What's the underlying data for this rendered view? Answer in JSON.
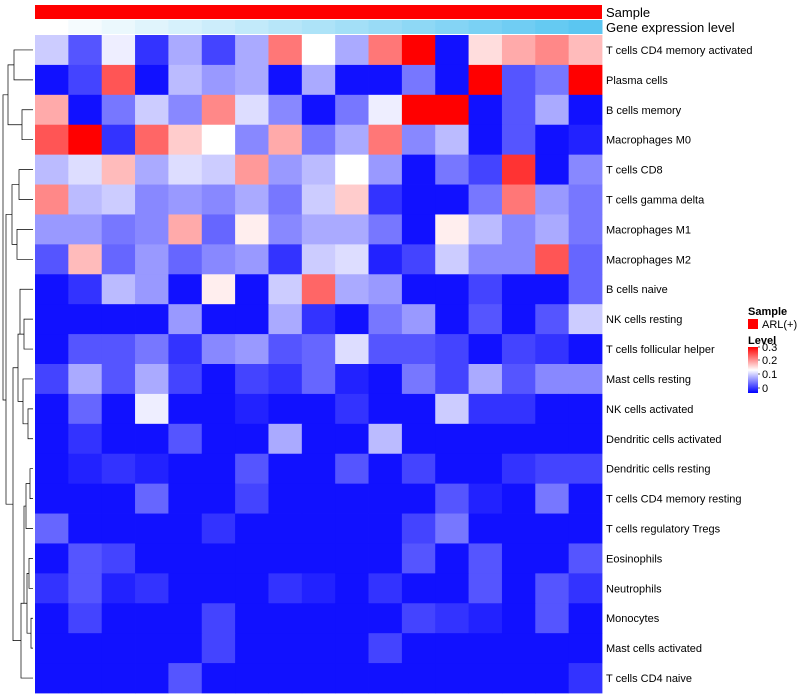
{
  "chart_data": {
    "type": "heatmap",
    "annotation_tracks": [
      {
        "name": "Sample",
        "color": "#ff0000"
      },
      {
        "name": "Gene expression level",
        "colors": [
          "#ffffff",
          "#5bc6f1"
        ]
      }
    ],
    "rows": [
      "T cells CD4 memory activated",
      "Plasma cells",
      "B cells memory",
      "Macrophages M0",
      "T cells CD8",
      "T cells gamma delta",
      "Macrophages M1",
      "Macrophages M2",
      "B cells naive",
      "NK cells resting",
      "T cells follicular helper",
      "Mast cells resting",
      "NK cells activated",
      "Dendritic cells activated",
      "Dendritic cells resting",
      "T cells CD4 memory resting",
      "T cells regulatory  Tregs",
      "Eosinophils",
      "Neutrophils",
      "Monocytes",
      "Mast cells activated",
      "T cells CD4 naive"
    ],
    "values": [
      [
        0.12,
        0.05,
        0.14,
        0.03,
        0.1,
        0.04,
        0.1,
        0.23,
        0.15,
        0.1,
        0.23,
        0.31,
        0.01,
        0.17,
        0.2,
        0.22,
        0.19
      ],
      [
        0.01,
        0.04,
        0.25,
        0.01,
        0.11,
        0.09,
        0.1,
        0.01,
        0.1,
        0.01,
        0.01,
        0.07,
        0.01,
        0.3,
        0.05,
        0.07,
        0.3
      ],
      [
        0.2,
        0.01,
        0.07,
        0.12,
        0.08,
        0.22,
        0.13,
        0.08,
        0.01,
        0.07,
        0.14,
        0.31,
        0.31,
        0.01,
        0.05,
        0.1,
        0.01
      ],
      [
        0.25,
        0.31,
        0.03,
        0.24,
        0.18,
        0.15,
        0.08,
        0.2,
        0.07,
        0.1,
        0.23,
        0.08,
        0.11,
        0.01,
        0.05,
        0.01,
        0.02
      ],
      [
        0.11,
        0.13,
        0.19,
        0.1,
        0.13,
        0.12,
        0.21,
        0.09,
        0.11,
        0.15,
        0.09,
        0.01,
        0.07,
        0.04,
        0.27,
        0.01,
        0.08
      ],
      [
        0.22,
        0.11,
        0.12,
        0.08,
        0.09,
        0.08,
        0.1,
        0.07,
        0.12,
        0.18,
        0.03,
        0.01,
        0.01,
        0.07,
        0.23,
        0.09,
        0.07
      ],
      [
        0.09,
        0.09,
        0.07,
        0.08,
        0.2,
        0.06,
        0.16,
        0.08,
        0.1,
        0.1,
        0.07,
        0.01,
        0.16,
        0.11,
        0.08,
        0.1,
        0.07
      ],
      [
        0.05,
        0.19,
        0.06,
        0.09,
        0.06,
        0.08,
        0.09,
        0.03,
        0.12,
        0.13,
        0.02,
        0.04,
        0.12,
        0.08,
        0.08,
        0.25,
        0.06
      ],
      [
        0.01,
        0.03,
        0.11,
        0.09,
        0.01,
        0.16,
        0.01,
        0.12,
        0.24,
        0.1,
        0.09,
        0.01,
        0.01,
        0.04,
        0.01,
        0.01,
        0.06
      ],
      [
        0.01,
        0.01,
        0.01,
        0.01,
        0.09,
        0.01,
        0.01,
        0.1,
        0.03,
        0.01,
        0.07,
        0.09,
        0.01,
        0.05,
        0.01,
        0.05,
        0.12
      ],
      [
        0.01,
        0.05,
        0.05,
        0.07,
        0.03,
        0.08,
        0.09,
        0.05,
        0.06,
        0.13,
        0.05,
        0.05,
        0.04,
        0.01,
        0.04,
        0.03,
        0.01
      ],
      [
        0.04,
        0.1,
        0.05,
        0.1,
        0.04,
        0.01,
        0.04,
        0.03,
        0.06,
        0.02,
        0.01,
        0.07,
        0.04,
        0.1,
        0.05,
        0.08,
        0.08
      ],
      [
        0.01,
        0.06,
        0.01,
        0.14,
        0.01,
        0.01,
        0.02,
        0.01,
        0.01,
        0.03,
        0.01,
        0.01,
        0.12,
        0.03,
        0.03,
        0.01,
        0.01
      ],
      [
        0.01,
        0.03,
        0.01,
        0.01,
        0.05,
        0.01,
        0.01,
        0.1,
        0.01,
        0.01,
        0.11,
        0.01,
        0.01,
        0.01,
        0.01,
        0.01,
        0.01
      ],
      [
        0.01,
        0.02,
        0.03,
        0.02,
        0.01,
        0.01,
        0.05,
        0.01,
        0.01,
        0.05,
        0.01,
        0.04,
        0.01,
        0.01,
        0.03,
        0.04,
        0.04
      ],
      [
        0.01,
        0.01,
        0.01,
        0.06,
        0.01,
        0.01,
        0.04,
        0.01,
        0.01,
        0.01,
        0.01,
        0.01,
        0.05,
        0.02,
        0.01,
        0.07,
        0.01
      ],
      [
        0.06,
        0.01,
        0.01,
        0.01,
        0.01,
        0.03,
        0.01,
        0.01,
        0.01,
        0.01,
        0.01,
        0.04,
        0.07,
        0.01,
        0.01,
        0.01,
        0.01
      ],
      [
        0.01,
        0.05,
        0.04,
        0.01,
        0.01,
        0.01,
        0.01,
        0.01,
        0.01,
        0.01,
        0.01,
        0.05,
        0.01,
        0.05,
        0.01,
        0.01,
        0.05
      ],
      [
        0.03,
        0.05,
        0.02,
        0.03,
        0.01,
        0.01,
        0.01,
        0.03,
        0.02,
        0.01,
        0.03,
        0.01,
        0.01,
        0.05,
        0.01,
        0.05,
        0.03
      ],
      [
        0.01,
        0.04,
        0.01,
        0.01,
        0.01,
        0.04,
        0.01,
        0.01,
        0.01,
        0.01,
        0.01,
        0.04,
        0.03,
        0.02,
        0.01,
        0.05,
        0.01
      ],
      [
        0.01,
        0.01,
        0.01,
        0.01,
        0.01,
        0.04,
        0.01,
        0.01,
        0.01,
        0.01,
        0.04,
        0.01,
        0.01,
        0.01,
        0.01,
        0.01,
        0.01
      ],
      [
        0.01,
        0.01,
        0.01,
        0.01,
        0.05,
        0.01,
        0.01,
        0.01,
        0.01,
        0.01,
        0.01,
        0.01,
        0.01,
        0.01,
        0.01,
        0.01,
        0.03
      ]
    ],
    "columns_count": 17,
    "color_scale": {
      "low": "#0000ff",
      "mid": "#ffffff",
      "high": "#ff0000",
      "min": 0,
      "mid_value": 0.15,
      "max": 0.3
    },
    "legend": {
      "sample_title": "Sample",
      "sample_entry": "ARL(+)",
      "level_title": "Level",
      "level_ticks": [
        "0.3",
        "0.2",
        "0.1",
        "0"
      ]
    }
  }
}
